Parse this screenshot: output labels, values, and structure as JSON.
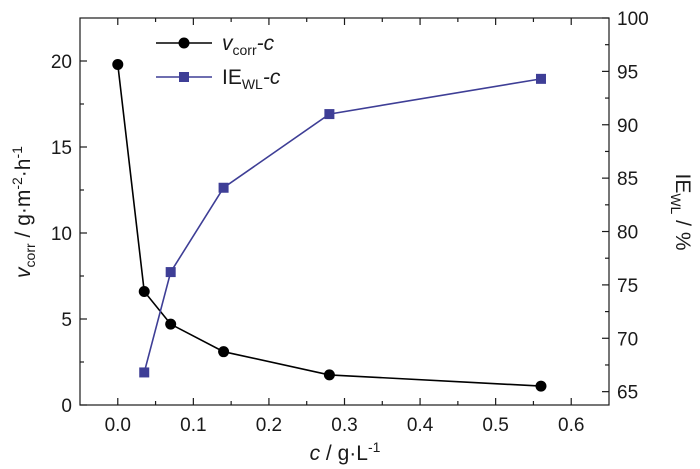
{
  "chart_data": {
    "type": "line",
    "x": [
      0.0,
      0.035,
      0.07,
      0.14,
      0.28,
      0.56
    ],
    "xlabel": {
      "var": "c",
      "sep": " / ",
      "unit": "g·L",
      "exp": "-1"
    },
    "xlim": [
      -0.05,
      0.65
    ],
    "xticks": [
      "0.0",
      "0.1",
      "0.2",
      "0.3",
      "0.4",
      "0.5",
      "0.6"
    ],
    "left_axis": {
      "ylim": [
        0,
        22.5
      ],
      "yticks": [
        "0",
        "5",
        "10",
        "15",
        "20"
      ],
      "label": {
        "var": "v",
        "sub": "corr",
        "unit1": " / g·m",
        "exp1": "-2",
        "unit2": "·h",
        "exp2": "-1"
      }
    },
    "right_axis": {
      "ylim": [
        63.75,
        100
      ],
      "yticks": [
        "65",
        "70",
        "75",
        "80",
        "85",
        "90",
        "95",
        "100"
      ],
      "label": {
        "main": "IE",
        "sub": "WL",
        "unit": " / %"
      }
    },
    "series": [
      {
        "name": "v_corr-c",
        "legend": {
          "var": "v",
          "sub": "corr",
          "suffix": "-c"
        },
        "axis": "left",
        "marker": "circle",
        "color": "#000000",
        "x": [
          0.0,
          0.035,
          0.07,
          0.14,
          0.28,
          0.56
        ],
        "values": [
          19.8,
          6.6,
          4.7,
          3.1,
          1.75,
          1.1
        ]
      },
      {
        "name": "IE_WL-c",
        "legend": {
          "main": "IE",
          "sub": "WL",
          "suffix": "-c"
        },
        "axis": "right",
        "marker": "square",
        "color": "#3e3e96",
        "x": [
          0.035,
          0.07,
          0.14,
          0.28,
          0.56
        ],
        "values": [
          66.8,
          76.2,
          84.1,
          91.0,
          94.3
        ]
      }
    ],
    "legend_position": "top-left"
  }
}
